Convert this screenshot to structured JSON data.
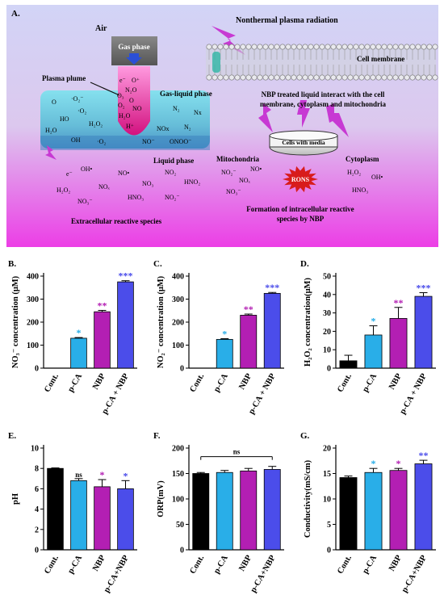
{
  "schematic": {
    "panel_label": "A.",
    "air": "Air",
    "gas_phase": "Gas phase",
    "plasma_plume": "Plasma plume",
    "nonthermal": "Nonthermal plasma radiation",
    "cell_membrane": "Cell membrane",
    "gas_liquid_phase": "Gas-liquid phase",
    "liquid_phase": "Liquid phase",
    "nbp_interact": [
      "NBP treated liquid interact with the cell",
      "membrane, cytoplasm and mitochondria"
    ],
    "cells_with_media": "Cells with media",
    "mitochondria": "Mitochondria",
    "cytoplasm": "Cytoplasm",
    "rons": "RONS",
    "extracellular": "Extracellular reactive species",
    "intracellular": [
      "Formation of intracellular reactive",
      "species by NBP"
    ],
    "plume_species": [
      "e⁻",
      "O⁺",
      "N₂O",
      "O₃",
      "O",
      "O₂",
      "NO",
      "H₂O",
      "H⁺"
    ],
    "gas_liquid_species_left": [
      "O",
      "·O₂⁻",
      "·O₂",
      "HO",
      "H₂O₂",
      "H₂O",
      "OH",
      "·O₂"
    ],
    "gas_liquid_species_right": [
      "N₂",
      "Nx",
      "N₂",
      "NOx",
      "NO⁻",
      "ONOO⁻"
    ],
    "liquid_species": [
      "e⁻",
      "OH•",
      "NO•",
      "NO₂",
      "H₂O₂",
      "NOₓ",
      "NO₃",
      "HNO₂",
      "NO₃⁻",
      "HNO₃",
      "NO₂⁻"
    ],
    "mito_species": [
      "NO₂⁻",
      "NO•",
      "NOₓ",
      "NO₃⁻"
    ],
    "cyto_species": [
      "H₂O₂",
      "OH•",
      "HNO₃"
    ]
  },
  "chart_data": [
    {
      "panel": "B.",
      "type": "bar",
      "categories": [
        "Cont.",
        "p-CA",
        "NBP",
        "p-CA + NBP"
      ],
      "values": [
        0,
        130,
        245,
        375
      ],
      "errors": [
        0,
        3,
        6,
        5
      ],
      "significance": [
        "",
        "*",
        "**",
        "***"
      ],
      "ylabel": "NO₃⁻ concentration (μM)",
      "ylim": [
        0,
        400
      ],
      "yticks": [
        0,
        100,
        200,
        300,
        400
      ],
      "colors": [
        "#000000",
        "#29aee8",
        "#b31fb3",
        "#4b4dea"
      ]
    },
    {
      "panel": "C.",
      "type": "bar",
      "categories": [
        "Cont.",
        "p-CA",
        "NBP",
        "p-CA + NBP"
      ],
      "values": [
        0,
        125,
        230,
        325
      ],
      "errors": [
        0,
        3,
        5,
        4
      ],
      "significance": [
        "",
        "*",
        "**",
        "***"
      ],
      "ylabel": "NO₂⁻ concentration (μM)",
      "ylim": [
        0,
        400
      ],
      "yticks": [
        0,
        100,
        200,
        300,
        400
      ],
      "colors": [
        "#000000",
        "#29aee8",
        "#b31fb3",
        "#4b4dea"
      ]
    },
    {
      "panel": "D.",
      "type": "bar",
      "categories": [
        "Cont.",
        "p-CA",
        "NBP",
        "p-CA + NBP"
      ],
      "values": [
        4,
        18,
        27,
        39
      ],
      "errors": [
        3,
        5,
        6,
        2
      ],
      "significance": [
        "",
        "*",
        "**",
        "***"
      ],
      "ylabel": "H₂O₂ concentration(μM)",
      "ylim": [
        0,
        50
      ],
      "yticks": [
        0,
        10,
        20,
        30,
        40,
        50
      ],
      "colors": [
        "#000000",
        "#29aee8",
        "#b31fb3",
        "#4b4dea"
      ]
    },
    {
      "panel": "E.",
      "type": "bar",
      "categories": [
        "Cont.",
        "p-CA",
        "NBP",
        "p-CA+NBP"
      ],
      "values": [
        8.0,
        6.8,
        6.2,
        6.0
      ],
      "errors": [
        0.05,
        0.2,
        0.7,
        0.8
      ],
      "significance": [
        "",
        "ns",
        "*",
        "*"
      ],
      "ylabel": "pH",
      "ylim": [
        0,
        10
      ],
      "yticks": [
        0,
        2,
        4,
        6,
        8,
        10
      ],
      "colors": [
        "#000000",
        "#29aee8",
        "#b31fb3",
        "#4b4dea"
      ]
    },
    {
      "panel": "F.",
      "type": "bar",
      "categories": [
        "Cont.",
        "p-CA",
        "NBP",
        "p-CA+NBP"
      ],
      "values": [
        150,
        152,
        155,
        158
      ],
      "errors": [
        2,
        4,
        5,
        6
      ],
      "significance": [
        "",
        "",
        "",
        ""
      ],
      "bracket_label": "ns",
      "ylabel": "ORP(mV)",
      "ylim": [
        0,
        200
      ],
      "yticks": [
        0,
        50,
        100,
        150,
        200
      ],
      "colors": [
        "#000000",
        "#29aee8",
        "#b31fb3",
        "#4b4dea"
      ]
    },
    {
      "panel": "G.",
      "type": "bar",
      "categories": [
        "Cont.",
        "p-CA",
        "NBP",
        "p-CA+NBP"
      ],
      "values": [
        14.2,
        15.2,
        15.6,
        16.9
      ],
      "errors": [
        0.3,
        0.8,
        0.4,
        0.7
      ],
      "significance": [
        "",
        "*",
        "*",
        "**"
      ],
      "ylabel": "Conductivity(mS/cm)",
      "ylim": [
        0,
        20
      ],
      "yticks": [
        0,
        5,
        10,
        15,
        20
      ],
      "colors": [
        "#000000",
        "#29aee8",
        "#b31fb3",
        "#4b4dea"
      ]
    }
  ]
}
